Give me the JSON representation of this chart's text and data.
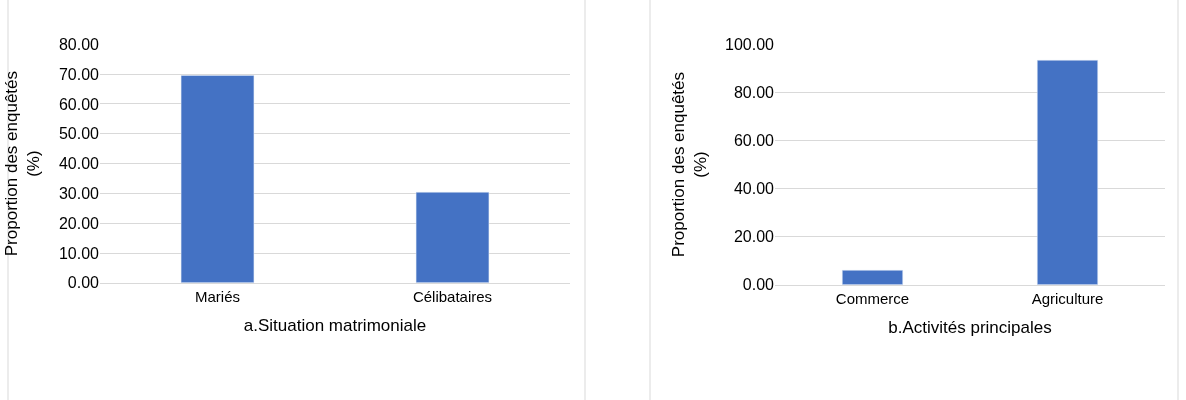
{
  "chart_data": [
    {
      "type": "bar",
      "categories": [
        "Mariés",
        "Célibataires"
      ],
      "values": [
        69.6,
        30.4
      ],
      "color": "#4472c4",
      "xlabel": "a.Situation matrimoniale",
      "ylabel": "Proportion des enquêtés (%)",
      "ylim": [
        0,
        80
      ],
      "yticks": [
        {
          "value": 0,
          "label": "0.00"
        },
        {
          "value": 10,
          "label": "10.00"
        },
        {
          "value": 20,
          "label": "20.00"
        },
        {
          "value": 30,
          "label": "30.00"
        },
        {
          "value": 40,
          "label": "40.00"
        },
        {
          "value": 50,
          "label": "50.00"
        },
        {
          "value": 60,
          "label": "60.00"
        },
        {
          "value": 70,
          "label": "70.00"
        },
        {
          "value": 80,
          "label": "80.00"
        }
      ],
      "grid": "y"
    },
    {
      "type": "bar",
      "categories": [
        "Commerce",
        "Agriculture"
      ],
      "values": [
        6.0,
        93.4
      ],
      "color": "#4472c4",
      "xlabel": "b.Activités principales",
      "ylabel": "Proportion des enquêtés (%)",
      "ylim": [
        0,
        100
      ],
      "yticks": [
        {
          "value": 0,
          "label": "0.00"
        },
        {
          "value": 20,
          "label": "20.00"
        },
        {
          "value": 40,
          "label": "40.00"
        },
        {
          "value": 60,
          "label": "60.00"
        },
        {
          "value": 80,
          "label": "80.00"
        },
        {
          "value": 100,
          "label": "100.00"
        }
      ],
      "grid": "y"
    }
  ]
}
